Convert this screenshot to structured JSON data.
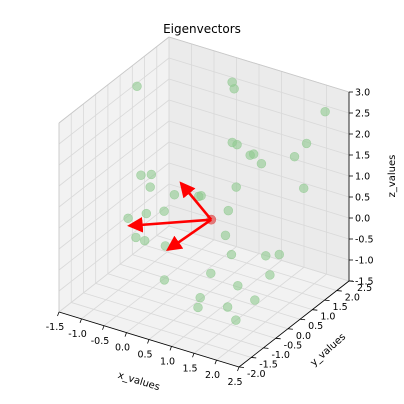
{
  "chart_data": {
    "type": "scatter",
    "projection": "3d",
    "title": "Eigenvectors",
    "xlabel": "x_values",
    "ylabel": "y_values",
    "zlabel": "z_values",
    "xlim": [
      -1.5,
      2.5
    ],
    "ylim": [
      -2.0,
      2.5
    ],
    "zlim": [
      -1.5,
      3.0
    ],
    "x_ticks": [
      "-1.5",
      "-1.0",
      "-0.5",
      "0.0",
      "0.5",
      "1.0",
      "1.5",
      "2.0",
      "2.5"
    ],
    "y_ticks": [
      "-2.0",
      "-1.5",
      "-1.0",
      "-0.5",
      "0.0",
      "0.5",
      "1.0",
      "1.5",
      "2.0",
      "2.5"
    ],
    "z_ticks": [
      "-1.5",
      "-1.0",
      "-0.5",
      "0.0",
      "0.5",
      "1.0",
      "1.5",
      "2.0",
      "2.5",
      "3.0"
    ],
    "grid": true,
    "point_color": "#8fc98f",
    "mean_color": "#e06666",
    "vector_color": "#ff0000",
    "mean_point": {
      "x": 0.59,
      "y": 0.38,
      "z": 0.3
    },
    "points": [
      {
        "x": -1.45,
        "y": 1.1,
        "z": 2.48
      },
      {
        "x": -1.05,
        "y": 0.95,
        "z": 0.58
      },
      {
        "x": -1.2,
        "y": 0.8,
        "z": 0.58
      },
      {
        "x": -1.35,
        "y": 0.55,
        "z": -0.38
      },
      {
        "x": -0.75,
        "y": 0.35,
        "z": 0.65
      },
      {
        "x": -0.55,
        "y": 0.55,
        "z": 0.05
      },
      {
        "x": -0.25,
        "y": 0.42,
        "z": 0.6
      },
      {
        "x": 0.3,
        "y": 0.4,
        "z": 0.75
      },
      {
        "x": -0.7,
        "y": 0.1,
        "z": 0.15
      },
      {
        "x": -0.85,
        "y": -0.05,
        "z": -0.4
      },
      {
        "x": -0.6,
        "y": -0.15,
        "z": -0.35
      },
      {
        "x": -0.25,
        "y": 0.05,
        "z": -0.45
      },
      {
        "x": 0.0,
        "y": -0.45,
        "z": -0.95
      },
      {
        "x": 0.3,
        "y": 0.5,
        "z": 0.72
      },
      {
        "x": 0.7,
        "y": 1.2,
        "z": 0.74
      },
      {
        "x": 0.6,
        "y": 1.3,
        "z": 3.0
      },
      {
        "x": 0.5,
        "y": 1.4,
        "z": 3.08
      },
      {
        "x": 0.72,
        "y": 1.0,
        "z": 1.9
      },
      {
        "x": 0.8,
        "y": 1.05,
        "z": 1.85
      },
      {
        "x": 1.2,
        "y": 0.85,
        "z": 1.82
      },
      {
        "x": 1.25,
        "y": 0.9,
        "z": 1.84
      },
      {
        "x": 1.45,
        "y": 0.85,
        "z": 1.7
      },
      {
        "x": 2.05,
        "y": 1.1,
        "z": 1.95
      },
      {
        "x": 2.35,
        "y": 1.8,
        "z": 2.8
      },
      {
        "x": 2.1,
        "y": 1.5,
        "z": 2.1
      },
      {
        "x": 2.2,
        "y": 1.2,
        "z": 1.2
      },
      {
        "x": 0.85,
        "y": 0.6,
        "z": 0.5
      },
      {
        "x": 0.95,
        "y": 0.3,
        "z": 0.08
      },
      {
        "x": 0.95,
        "y": -0.3,
        "z": -0.55
      },
      {
        "x": 0.85,
        "y": -0.55,
        "z": -1.05
      },
      {
        "x": 1.3,
        "y": -0.1,
        "z": -0.08
      },
      {
        "x": 1.55,
        "y": -0.3,
        "z": -0.65
      },
      {
        "x": 1.9,
        "y": 0.2,
        "z": -0.05
      },
      {
        "x": 2.2,
        "y": 0.2,
        "z": 0.08
      },
      {
        "x": 2.1,
        "y": 0.0,
        "z": -0.35
      },
      {
        "x": 2.2,
        "y": -0.8,
        "z": -0.55
      },
      {
        "x": 1.65,
        "y": -0.9,
        "z": -0.85
      },
      {
        "x": 1.1,
        "y": -1.1,
        "z": -0.95
      },
      {
        "x": 2.05,
        "y": -1.3,
        "z": -0.85
      }
    ],
    "vectors": [
      {
        "x": -0.75,
        "y": 0.15,
        "z": 0.55
      },
      {
        "x": -1.35,
        "y": -0.85,
        "z": -0.2
      },
      {
        "x": -0.55,
        "y": -0.75,
        "z": -0.55
      }
    ]
  }
}
